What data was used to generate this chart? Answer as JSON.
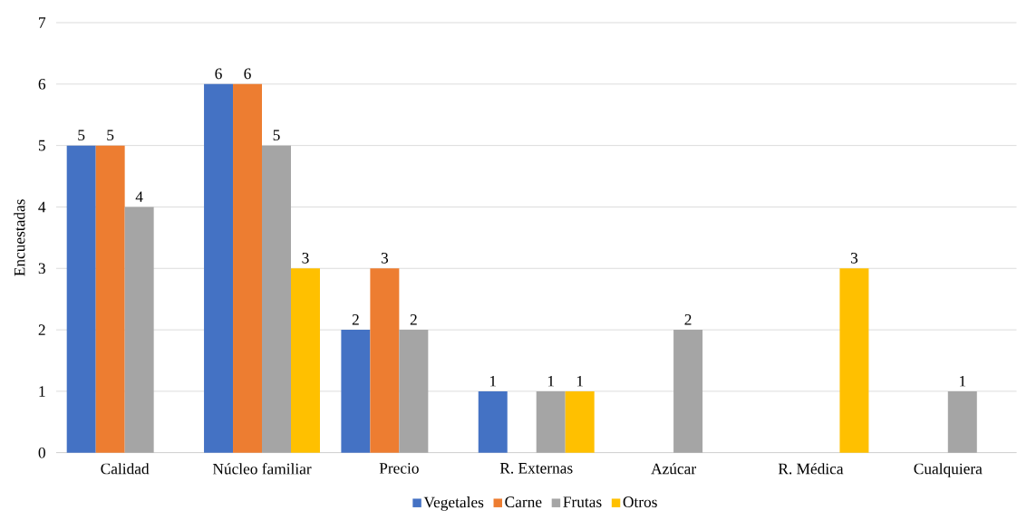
{
  "chart_data": {
    "type": "bar",
    "ylabel": "Encuestadas",
    "categories": [
      "Calidad",
      "Núcleo familiar",
      "Precio",
      "R. Externas",
      "Azúcar",
      "R. Médica",
      "Cualquiera"
    ],
    "series": [
      {
        "name": "Vegetales",
        "color": "#4472c4",
        "values": [
          5,
          6,
          2,
          1,
          null,
          null,
          null
        ],
        "value_labels": [
          "5",
          "6",
          "2",
          "1",
          null,
          null,
          null
        ]
      },
      {
        "name": "Carne",
        "color": "#ed7d31",
        "values": [
          5,
          6,
          3,
          null,
          null,
          null,
          null
        ],
        "value_labels": [
          "5",
          "6",
          "3",
          null,
          null,
          null,
          null
        ]
      },
      {
        "name": "Frutas",
        "color": "#a5a5a5",
        "values": [
          4,
          5,
          2,
          1,
          2,
          null,
          1
        ],
        "value_labels": [
          "4",
          "5",
          "2",
          "1",
          "2",
          null,
          "1"
        ]
      },
      {
        "name": "Otros",
        "color": "#ffc000",
        "values": [
          null,
          3,
          null,
          1,
          null,
          3,
          null
        ],
        "value_labels": [
          null,
          "3",
          null,
          "1",
          null,
          "3",
          null
        ]
      }
    ],
    "ylim": [
      0,
      7
    ],
    "yticks": [
      0,
      1,
      2,
      3,
      4,
      5,
      6,
      7
    ],
    "grid": "y",
    "legend": "bottom"
  }
}
